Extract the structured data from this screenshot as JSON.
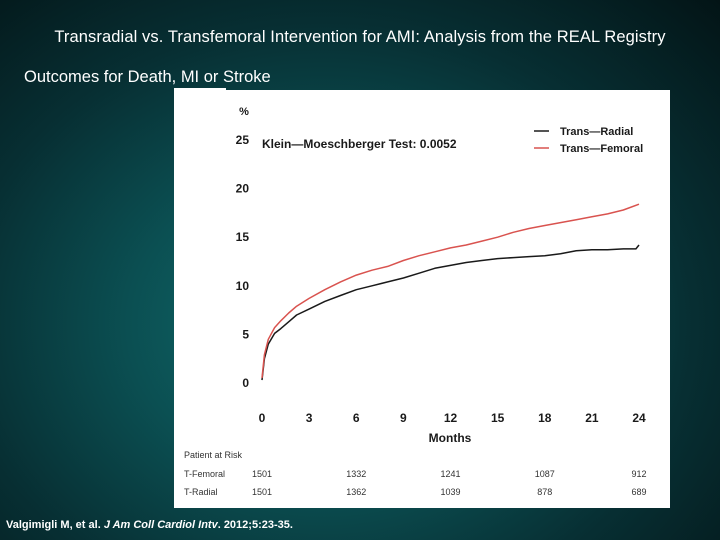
{
  "slide": {
    "title": "Transradial vs. Transfemoral Intervention for AMI: Analysis from the REAL Registry",
    "subtitle": "Outcomes for Death, MI or Stroke"
  },
  "citation": {
    "authors": "Valgimigli M, et al. ",
    "journal": "J Am Coll Cardiol Intv",
    "details": ". 2012;5:23-35."
  },
  "chart_data": {
    "type": "line",
    "y_unit_label": "%",
    "xlabel": "Months",
    "ylabel": "",
    "xlim": [
      0,
      24
    ],
    "ylim": [
      0,
      25
    ],
    "x_ticks": [
      0,
      3,
      6,
      9,
      12,
      15,
      18,
      21,
      24
    ],
    "y_ticks": [
      0,
      5,
      10,
      15,
      20,
      25
    ],
    "annotation": "Klein—Moeschberger  Test:  0.0052",
    "legend_position": "top-right",
    "colors": {
      "Trans—Radial": "#1a1a1a",
      "Trans—Femoral": "#d9534f"
    },
    "series": [
      {
        "name": "Trans—Radial",
        "x": [
          0,
          0.15,
          0.4,
          0.8,
          1.2,
          1.7,
          2.2,
          3,
          4,
          5,
          6,
          7,
          8,
          9,
          10,
          11,
          12,
          13,
          14,
          15,
          16,
          17,
          18,
          19,
          20,
          21,
          22,
          23,
          23.8,
          24
        ],
        "y": [
          0.3,
          2.5,
          4.0,
          5.1,
          5.6,
          6.3,
          7.0,
          7.6,
          8.4,
          9.0,
          9.6,
          10.0,
          10.4,
          10.8,
          11.3,
          11.8,
          12.1,
          12.4,
          12.6,
          12.8,
          12.9,
          13.0,
          13.1,
          13.3,
          13.6,
          13.7,
          13.7,
          13.8,
          13.8,
          14.2
        ]
      },
      {
        "name": "Trans—Femoral",
        "x": [
          0,
          0.15,
          0.4,
          0.8,
          1.2,
          1.7,
          2.2,
          3,
          4,
          5,
          6,
          7,
          8,
          9,
          10,
          11,
          12,
          13,
          14,
          15,
          16,
          17,
          18,
          19,
          20,
          21,
          22,
          23,
          24
        ],
        "y": [
          0.5,
          2.9,
          4.5,
          5.7,
          6.4,
          7.2,
          7.9,
          8.7,
          9.6,
          10.4,
          11.1,
          11.6,
          12.0,
          12.6,
          13.1,
          13.5,
          13.9,
          14.2,
          14.6,
          15.0,
          15.5,
          15.9,
          16.2,
          16.5,
          16.8,
          17.1,
          17.4,
          17.8,
          18.4
        ]
      }
    ],
    "risk_table": {
      "title": "Patient at Risk",
      "rows": [
        {
          "label": "T-Femoral",
          "values": [
            "1501",
            "1332",
            "1241",
            "1087",
            "912"
          ]
        },
        {
          "label": "T-Radial",
          "values": [
            "1501",
            "1362",
            "1039",
            "878",
            "689"
          ]
        }
      ]
    }
  }
}
